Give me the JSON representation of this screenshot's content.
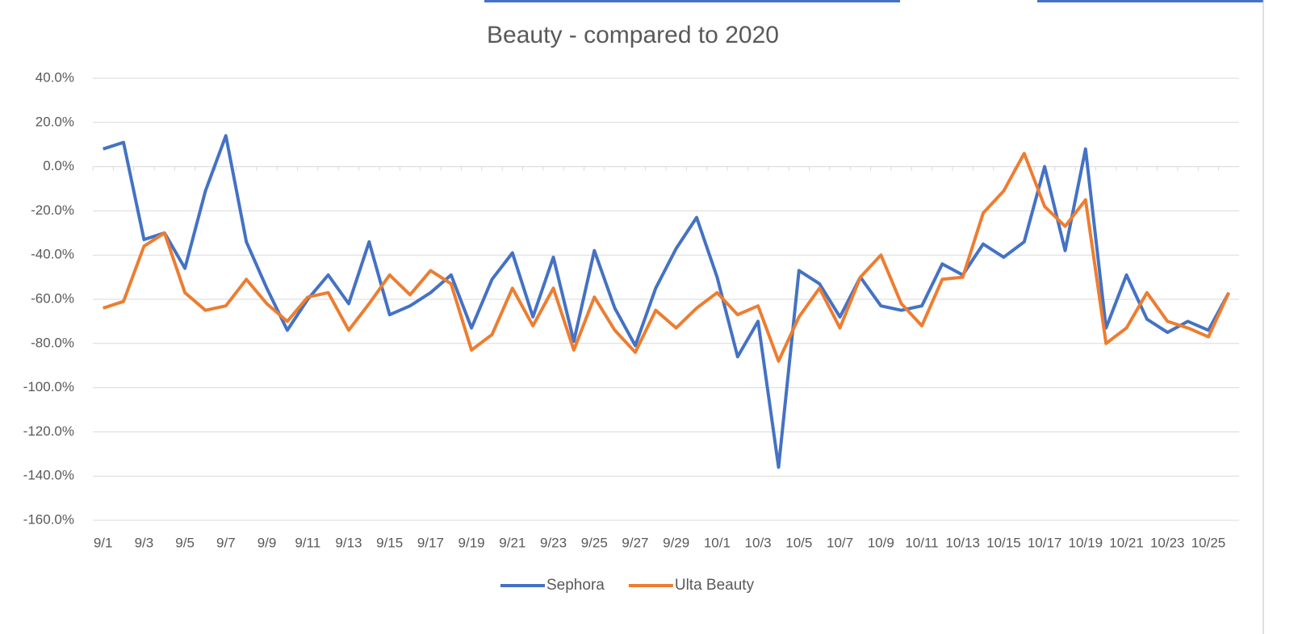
{
  "chart_data": {
    "type": "line",
    "title": "Beauty - compared to 2020",
    "categories": [
      "9/1",
      null,
      "9/3",
      null,
      "9/5",
      null,
      "9/7",
      null,
      "9/9",
      null,
      "9/11",
      null,
      "9/13",
      null,
      "9/15",
      null,
      "9/17",
      null,
      "9/19",
      null,
      "9/21",
      null,
      "9/23",
      null,
      "9/25",
      null,
      "9/27",
      null,
      "9/29",
      null,
      "10/1",
      null,
      "10/3",
      null,
      "10/5",
      null,
      "10/7",
      null,
      "10/9",
      null,
      "10/11",
      null,
      "10/13",
      null,
      "10/15",
      null,
      "10/17",
      null,
      "10/19",
      null,
      "10/21",
      null,
      "10/23",
      null,
      "10/25",
      null
    ],
    "series": [
      {
        "name": "Sephora",
        "color": "#4472c4",
        "values": [
          8,
          11,
          -33,
          -30,
          -46,
          -11,
          14,
          -34,
          -55,
          -74,
          -60,
          -49,
          -62,
          -34,
          -67,
          -63,
          -57,
          -49,
          -73,
          -51,
          -39,
          -68,
          -41,
          -79,
          -38,
          -64,
          -81,
          -55,
          -37,
          -23,
          -50,
          -86,
          -70,
          -136,
          -47,
          -53,
          -68,
          -50,
          -63,
          -65,
          -63,
          -44,
          -49,
          -35,
          -41,
          -34,
          0,
          -38,
          8,
          -73,
          -49,
          -69,
          -75,
          -70,
          -74,
          -57
        ]
      },
      {
        "name": "Ulta Beauty",
        "color": "#ed7d31",
        "values": [
          -64,
          -61,
          -36,
          -30,
          -57,
          -65,
          -63,
          -51,
          -62,
          -70,
          -59,
          -57,
          -74,
          -62,
          -49,
          -58,
          -47,
          -53,
          -83,
          -76,
          -55,
          -72,
          -55,
          -83,
          -59,
          -74,
          -84,
          -65,
          -73,
          -64,
          -57,
          -67,
          -63,
          -88,
          -68,
          -55,
          -73,
          -50,
          -40,
          -62,
          -72,
          -51,
          -50,
          -21,
          -11,
          6,
          -18,
          -27,
          -15,
          -80,
          -73,
          -57,
          -70,
          -73,
          -77,
          -57
        ]
      }
    ],
    "ylim": [
      -160,
      40
    ],
    "yticks": [
      {
        "value": 40,
        "label": "40.0%"
      },
      {
        "value": 20,
        "label": "20.0%"
      },
      {
        "value": 0,
        "label": "0.0%"
      },
      {
        "value": -20,
        "label": "-20.0%"
      },
      {
        "value": -40,
        "label": "-40.0%"
      },
      {
        "value": -60,
        "label": "-60.0%"
      },
      {
        "value": -80,
        "label": "-80.0%"
      },
      {
        "value": -100,
        "label": "-100.0%"
      },
      {
        "value": -120,
        "label": "-120.0%"
      },
      {
        "value": -140,
        "label": "-140.0%"
      },
      {
        "value": -160,
        "label": "-160.0%"
      }
    ],
    "grid": true,
    "legend": "bottom"
  }
}
